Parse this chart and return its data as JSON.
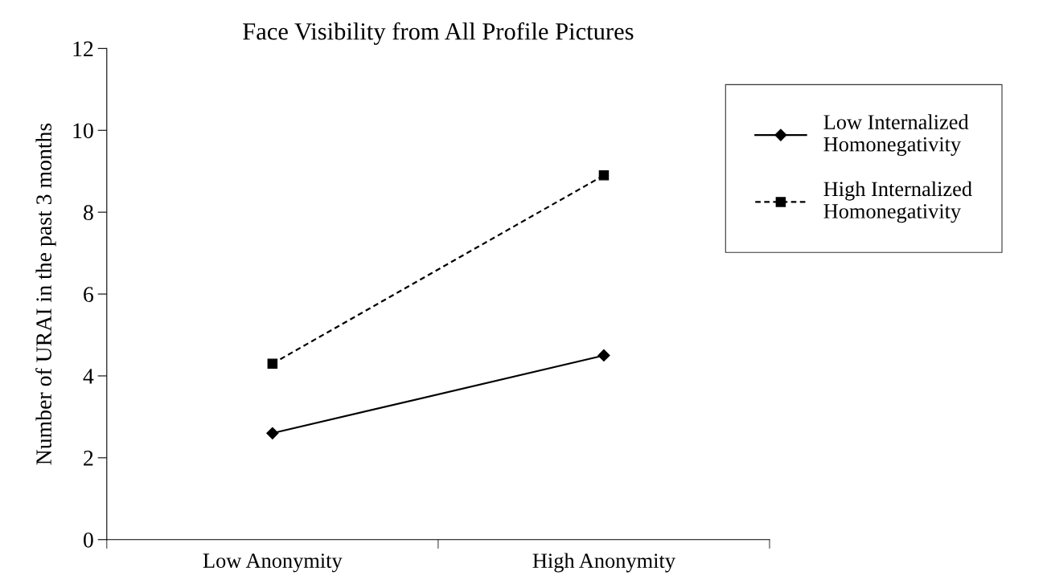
{
  "chart_data": {
    "type": "line",
    "title": "Face Visibility from All Profile Pictures",
    "ylabel": "Number of URAI in the past 3 months",
    "categories": [
      "Low Anonymity",
      "High Anonymity"
    ],
    "series": [
      {
        "name": "Low Internalized\nHomonegativity",
        "color": "#000000",
        "values": [
          2.6,
          4.5
        ],
        "marker": "diamond",
        "line_style": "solid"
      },
      {
        "name": "High Internalized\nHomonegativity",
        "color": "#000000",
        "values": [
          4.3,
          8.9
        ],
        "marker": "square",
        "line_style": "dashed"
      }
    ],
    "ylim": [
      0,
      12
    ],
    "yticks": [
      0,
      2,
      4,
      6,
      8,
      10,
      12
    ],
    "grid": false,
    "legend": "right"
  }
}
